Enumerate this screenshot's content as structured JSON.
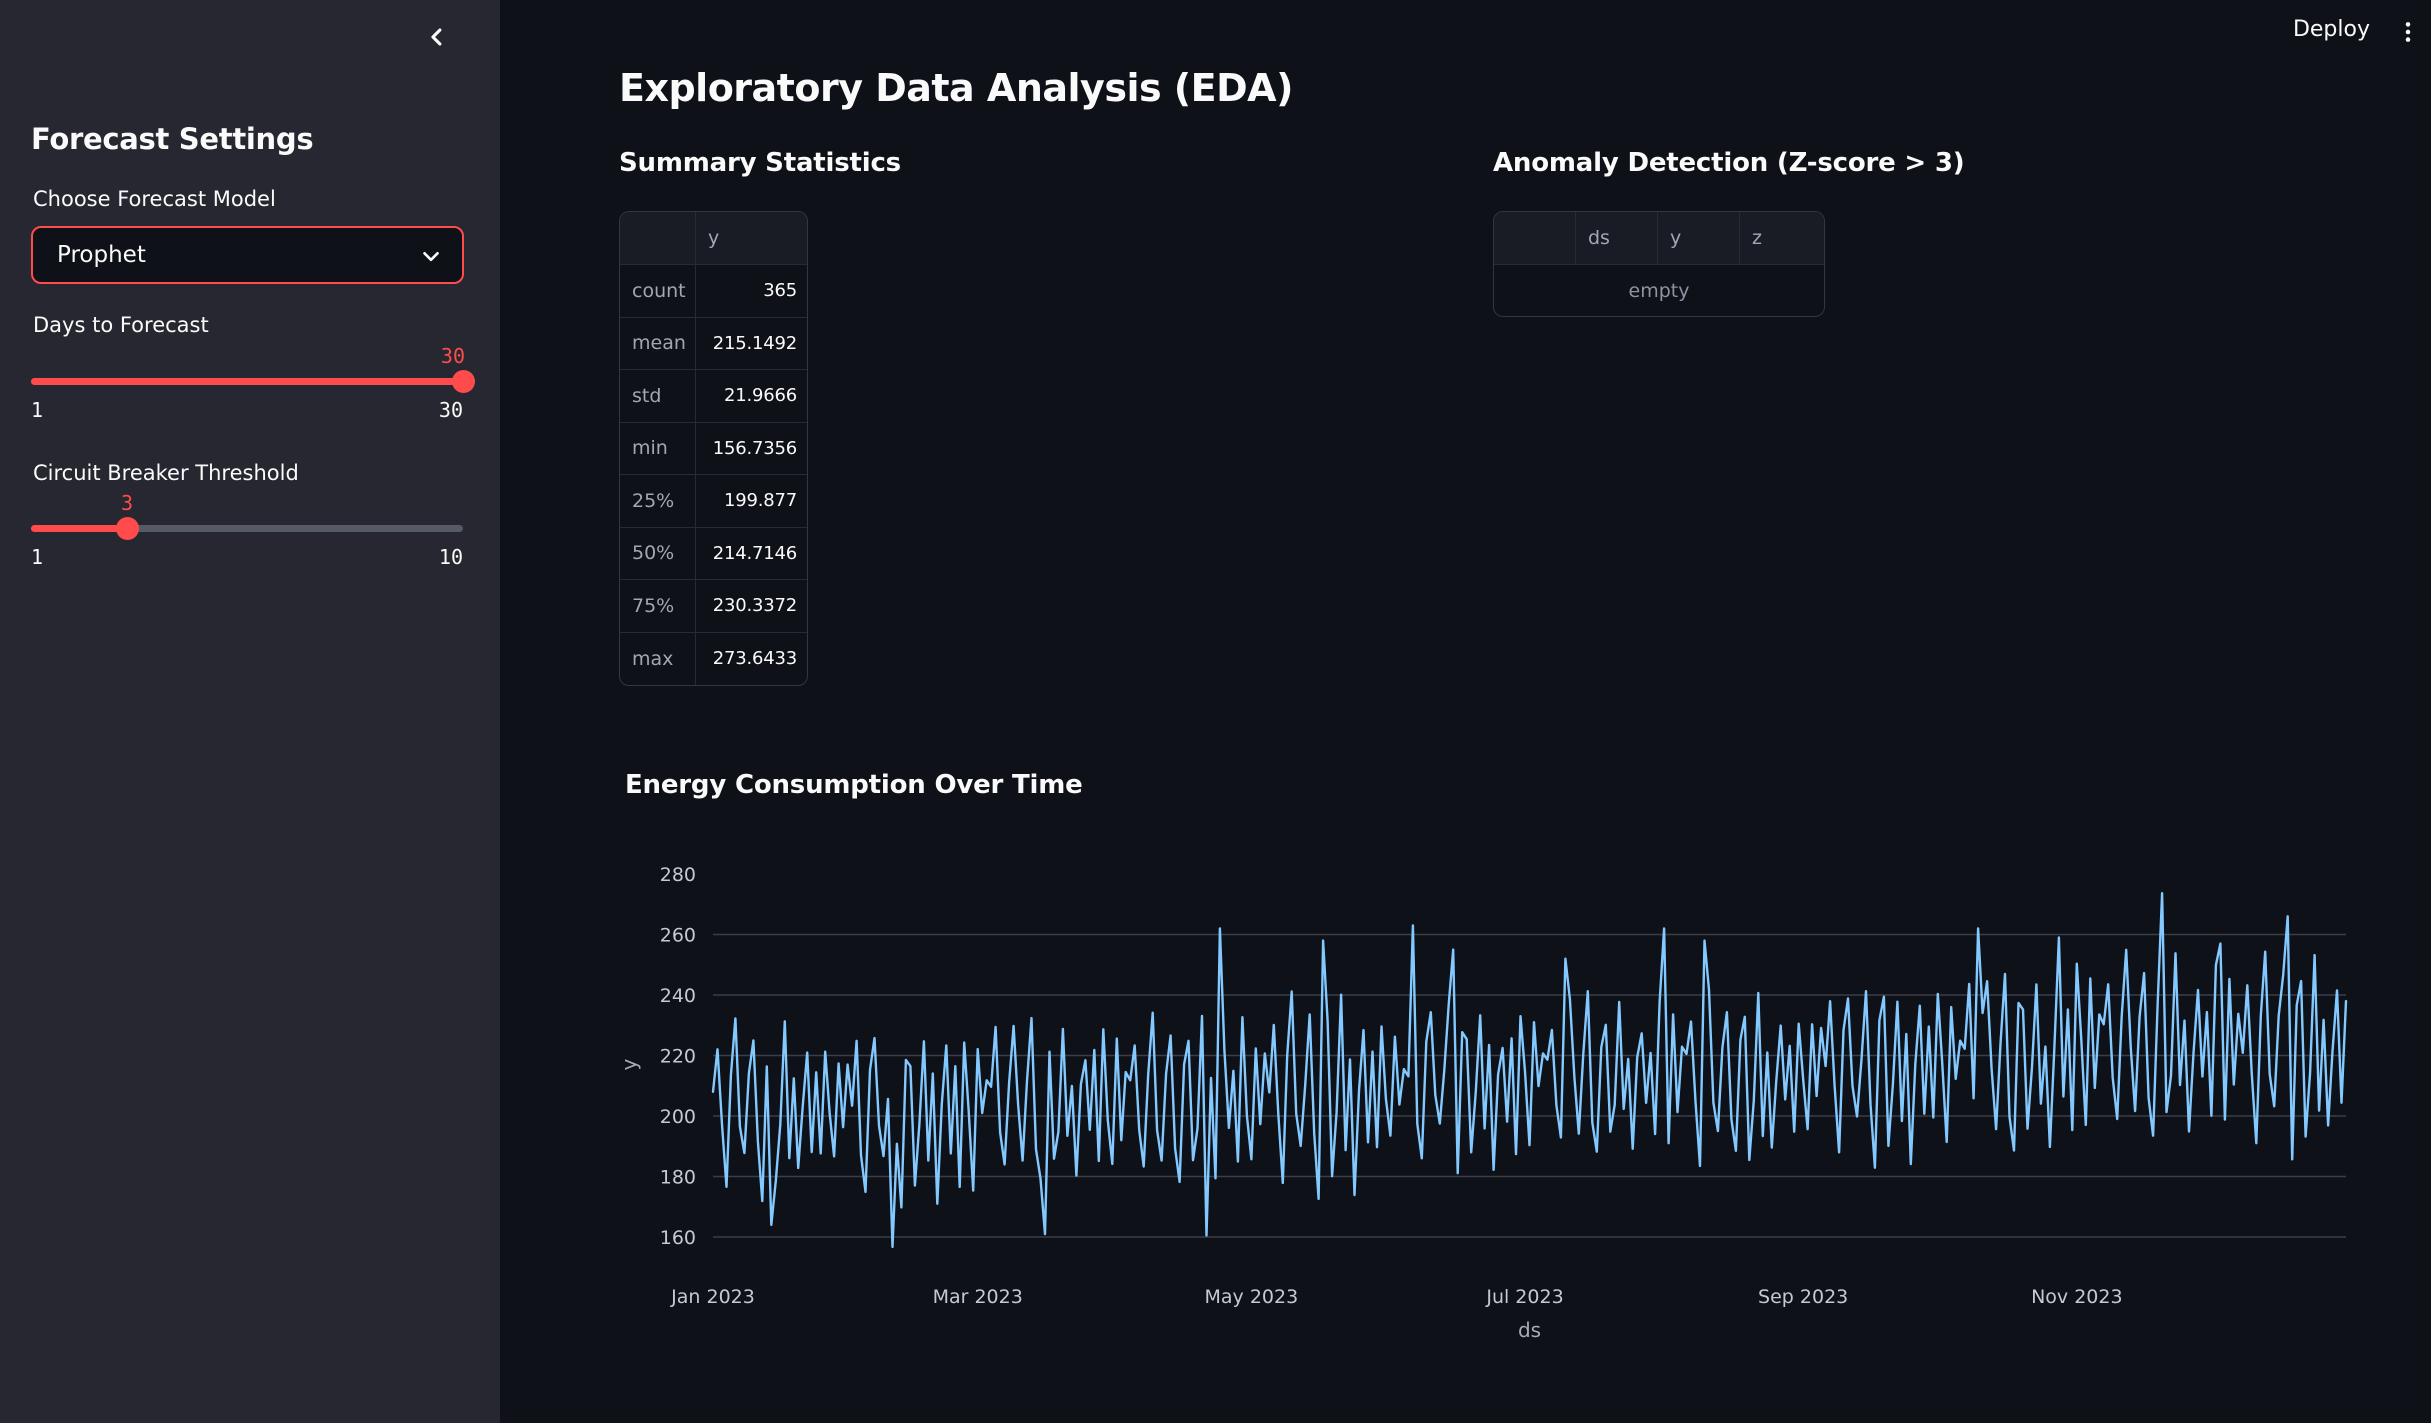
{
  "app": {
    "deploy_label": "Deploy"
  },
  "sidebar": {
    "title": "Forecast Settings",
    "model_select": {
      "label": "Choose Forecast Model",
      "value": "Prophet"
    },
    "days_slider": {
      "label": "Days to Forecast",
      "value": "30",
      "min": "1",
      "max": "30",
      "value_num": 30,
      "min_num": 1,
      "max_num": 30
    },
    "threshold_slider": {
      "label": "Circuit Breaker Threshold",
      "value": "3",
      "min": "1",
      "max": "10",
      "value_num": 3,
      "min_num": 1,
      "max_num": 10
    }
  },
  "main": {
    "title": "Exploratory Data Analysis (EDA)",
    "summary": {
      "heading": "Summary Statistics",
      "col_header": "y",
      "rows": [
        [
          "count",
          "365"
        ],
        [
          "mean",
          "215.1492"
        ],
        [
          "std",
          "21.9666"
        ],
        [
          "min",
          "156.7356"
        ],
        [
          "25%",
          "199.877"
        ],
        [
          "50%",
          "214.7146"
        ],
        [
          "75%",
          "230.3372"
        ],
        [
          "max",
          "273.6433"
        ]
      ]
    },
    "anomaly": {
      "heading": "Anomaly Detection (Z-score > 3)",
      "columns": [
        "",
        "ds",
        "y",
        "z"
      ],
      "empty_label": "empty"
    }
  },
  "chart_data": {
    "type": "line",
    "title": "Energy Consumption Over Time",
    "xlabel": "ds",
    "ylabel": "y",
    "x_start": "2023-01-01",
    "x_end": "2023-12-31",
    "n_points": 365,
    "ylim": [
      155,
      284
    ],
    "y_ticks": [
      280,
      260,
      240,
      220,
      200,
      180,
      160
    ],
    "y_gridlines": [
      260,
      240,
      220,
      200,
      180,
      160
    ],
    "x_ticks": [
      {
        "label": "Jan 2023",
        "day": 0
      },
      {
        "label": "Mar 2023",
        "day": 59
      },
      {
        "label": "May 2023",
        "day": 120
      },
      {
        "label": "Jul 2023",
        "day": 181
      },
      {
        "label": "Sep 2023",
        "day": 243
      },
      {
        "label": "Nov 2023",
        "day": 304
      }
    ],
    "stats": {
      "count": 365,
      "mean": 215.1492,
      "std": 21.9666,
      "min": 156.7356,
      "q25": 199.877,
      "q50": 214.7146,
      "q75": 230.3372,
      "max": 273.6433
    },
    "series_spec": {
      "n": 365,
      "month_days": [
        31,
        28,
        31,
        30,
        31,
        30,
        31,
        31,
        30,
        31,
        30,
        31
      ],
      "month_base": [
        203,
        201,
        205,
        204,
        207,
        210,
        213,
        212,
        215,
        218,
        223,
        221
      ],
      "month_amp": [
        0.95,
        1.05,
        0.95,
        1.05,
        1.1,
        1.0,
        0.95,
        1.0,
        1.05,
        1.05,
        1.15,
        1.1
      ],
      "motif": [
        4,
        21,
        -9,
        -24,
        11,
        27,
        -4,
        -17,
        7,
        25,
        -14,
        -28,
        15,
        19,
        -22,
        -6,
        26,
        -15,
        9,
        -26,
        2,
        17,
        -11,
        13,
        -19,
        23,
        -2,
        -21,
        18,
        -8,
        10
      ],
      "jitter": [
        37,
        11,
        5,
        0.9
      ],
      "anchors": {
        "0": 208,
        "13": 164,
        "40": 156.7356,
        "74": 161,
        "110": 160.5,
        "113": 262,
        "136": 258,
        "156": 263,
        "165": 255,
        "190": 252,
        "212": 262,
        "221": 258,
        "282": 262,
        "300": 259,
        "323": 273.6433,
        "336": 257,
        "351": 266,
        "364": 238
      },
      "clamp": [
        156.7356,
        273.6433
      ]
    },
    "colors": {
      "line": "#83c9ff",
      "grid": "#3a3e48",
      "tick_label": "#c6c9d0",
      "axis_title": "#a6abb6"
    },
    "legend": false
  },
  "colors": {
    "background": "#0e1117",
    "sidebar": "#262730",
    "accent": "#ff4b4b",
    "text": "#fafafa"
  }
}
